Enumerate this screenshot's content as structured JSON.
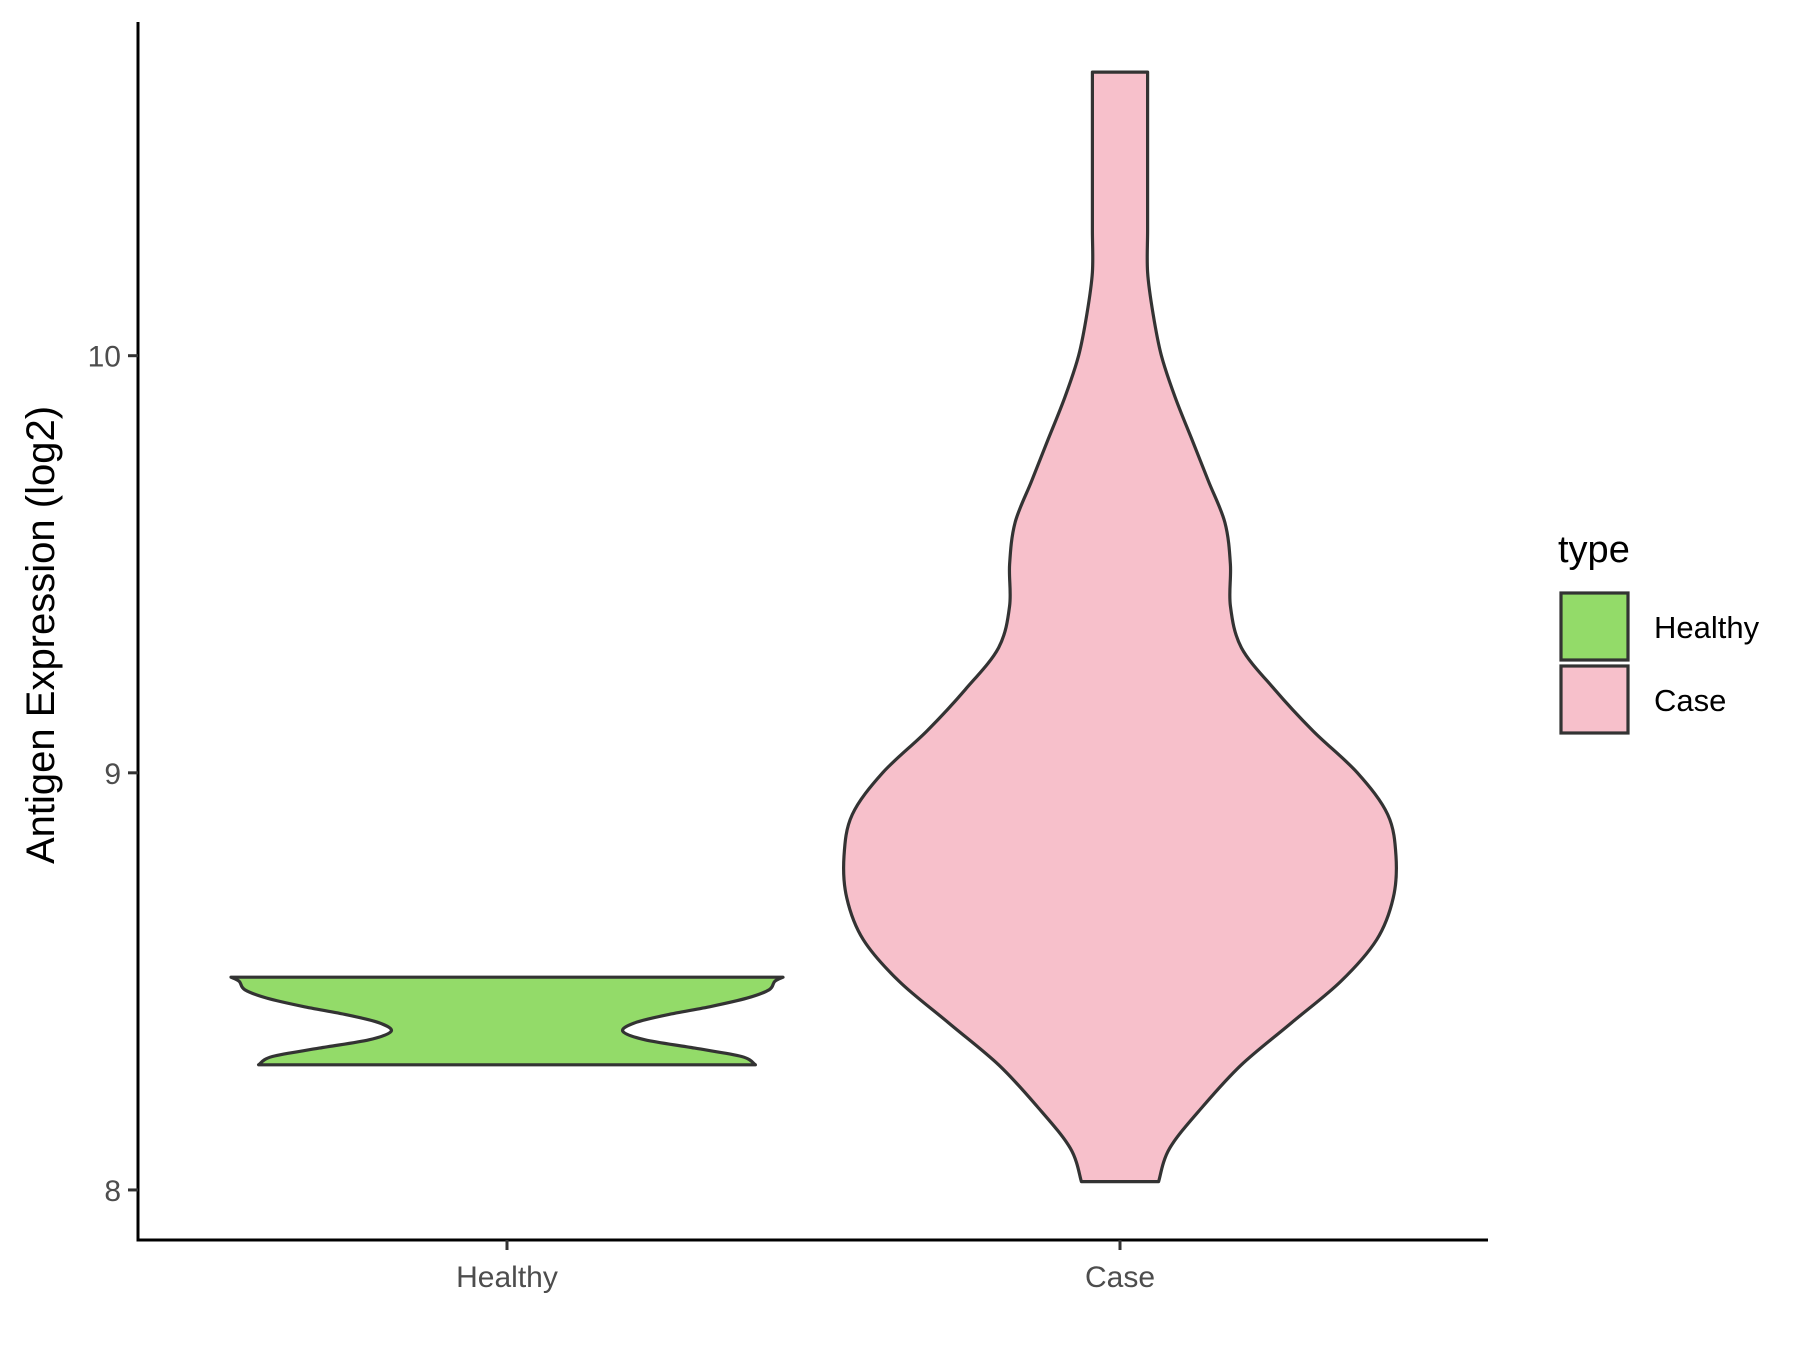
{
  "chart_data": {
    "type": "violin",
    "title": "",
    "xlabel": "",
    "ylabel": "Antigen Expression (log2)",
    "categories": [
      "Healthy",
      "Case"
    ],
    "yticks": [
      8,
      9,
      10
    ],
    "ylim": [
      7.88,
      10.8
    ],
    "grid": false,
    "legend": {
      "title": "type",
      "placement": "right",
      "entries": [
        {
          "label": "Healthy",
          "color": "#93DB69"
        },
        {
          "label": "Case",
          "color": "#F7C0CB"
        }
      ]
    },
    "series": [
      {
        "name": "Healthy",
        "color": "#93DB69",
        "ymin": 8.3,
        "ymax": 8.51,
        "profile": [
          [
            8.3,
            0.9
          ],
          [
            8.32,
            0.85
          ],
          [
            8.34,
            0.68
          ],
          [
            8.36,
            0.5
          ],
          [
            8.38,
            0.42
          ],
          [
            8.4,
            0.46
          ],
          [
            8.42,
            0.58
          ],
          [
            8.44,
            0.74
          ],
          [
            8.46,
            0.87
          ],
          [
            8.48,
            0.95
          ],
          [
            8.5,
            0.97
          ],
          [
            8.51,
            1.0
          ]
        ]
      },
      {
        "name": "Case",
        "color": "#F7C0CB",
        "ymin": 8.02,
        "ymax": 10.68,
        "profile": [
          [
            8.02,
            0.14
          ],
          [
            8.1,
            0.18
          ],
          [
            8.2,
            0.3
          ],
          [
            8.3,
            0.44
          ],
          [
            8.4,
            0.62
          ],
          [
            8.5,
            0.8
          ],
          [
            8.6,
            0.93
          ],
          [
            8.7,
            0.99
          ],
          [
            8.8,
            1.0
          ],
          [
            8.9,
            0.97
          ],
          [
            9.0,
            0.86
          ],
          [
            9.1,
            0.7
          ],
          [
            9.2,
            0.56
          ],
          [
            9.3,
            0.44
          ],
          [
            9.4,
            0.4
          ],
          [
            9.5,
            0.4
          ],
          [
            9.6,
            0.38
          ],
          [
            9.7,
            0.32
          ],
          [
            9.8,
            0.26
          ],
          [
            9.9,
            0.2
          ],
          [
            10.0,
            0.15
          ],
          [
            10.1,
            0.12
          ],
          [
            10.2,
            0.1
          ],
          [
            10.3,
            0.1
          ],
          [
            10.4,
            0.1
          ],
          [
            10.5,
            0.1
          ],
          [
            10.6,
            0.1
          ],
          [
            10.68,
            0.1
          ]
        ]
      }
    ]
  }
}
